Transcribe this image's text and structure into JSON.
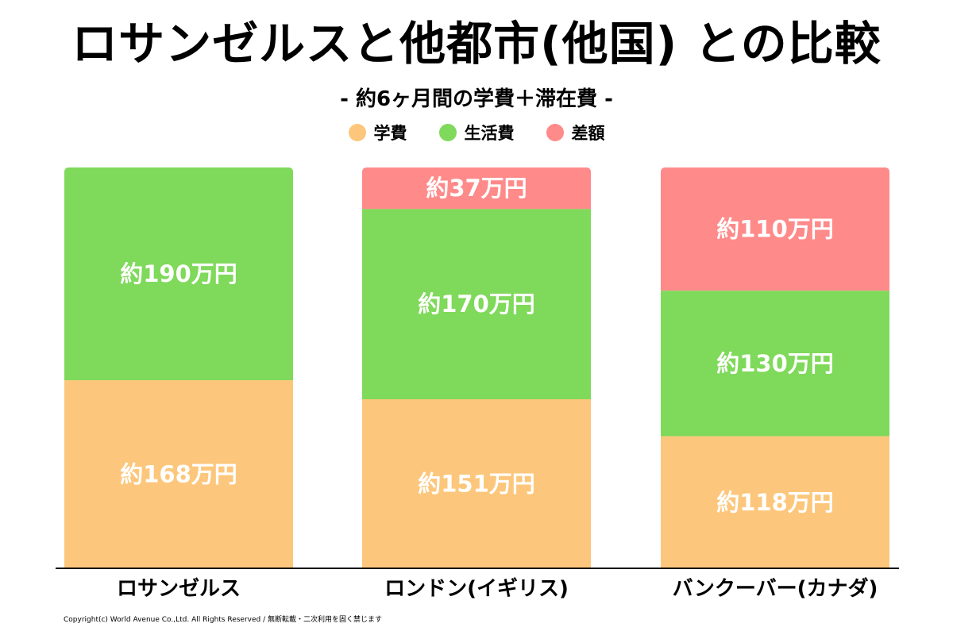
{
  "header": {
    "title": "ロサンゼルスと他都市(他国) との比較",
    "subtitle": "- 約6ヶ月間の学費＋滞在費 -"
  },
  "legend": [
    {
      "label": "学費",
      "color": "#FCC77C"
    },
    {
      "label": "生活費",
      "color": "#7FD95A"
    },
    {
      "label": "差額",
      "color": "#FF8A8A"
    }
  ],
  "chart_data": {
    "type": "bar",
    "stacked": true,
    "categories": [
      "ロサンゼルス",
      "ロンドン(イギリス)",
      "バンクーバー(カナダ)"
    ],
    "series": [
      {
        "name": "学費",
        "color": "#FCC77C",
        "values": [
          168,
          151,
          118
        ],
        "labels": [
          "約168万円",
          "約151万円",
          "約118万円"
        ]
      },
      {
        "name": "生活費",
        "color": "#7FD95A",
        "values": [
          190,
          170,
          130
        ],
        "labels": [
          "約190万円",
          "約170万円",
          "約130万円"
        ]
      },
      {
        "name": "差額",
        "color": "#FF8A8A",
        "values": [
          0,
          37,
          110
        ],
        "labels": [
          "",
          "約37万円",
          "約110万円"
        ]
      }
    ],
    "unit": "万円",
    "ylim": [
      0,
      358
    ],
    "grid": false,
    "legend_position": "top-center"
  },
  "footer": {
    "copyright": "Copyright(c) World Avenue Co.,Ltd. All Rights Reserved / 無断転載・二次利用を固く禁じます"
  }
}
